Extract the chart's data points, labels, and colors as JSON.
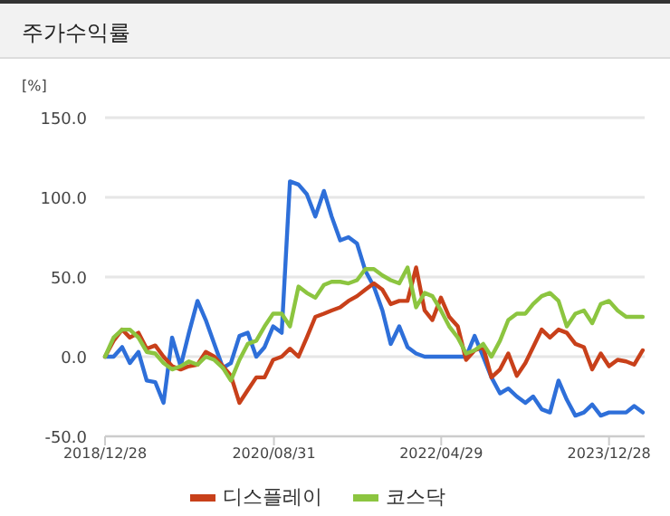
{
  "chart_data": {
    "type": "line",
    "title": "주가수익률",
    "ylabel": "[%]",
    "x": [
      "2018-12-28",
      "2019-01-28",
      "2019-02-28",
      "2019-03-28",
      "2019-04-28",
      "2019-05-28",
      "2019-06-28",
      "2019-07-28",
      "2019-08-28",
      "2019-09-28",
      "2019-10-28",
      "2019-11-28",
      "2019-12-28",
      "2020-01-28",
      "2020-02-28",
      "2020-03-28",
      "2020-04-28",
      "2020-05-28",
      "2020-06-28",
      "2020-07-28",
      "2020-08-28",
      "2020-09-28",
      "2020-10-28",
      "2020-11-28",
      "2020-12-28",
      "2021-01-28",
      "2021-02-28",
      "2021-03-28",
      "2021-04-28",
      "2021-05-28",
      "2021-06-28",
      "2021-07-28",
      "2021-08-28",
      "2021-09-28",
      "2021-10-28",
      "2021-11-28",
      "2021-12-28",
      "2022-01-28",
      "2022-02-28",
      "2022-03-28",
      "2022-04-28",
      "2022-05-28",
      "2022-06-28",
      "2022-07-28",
      "2022-08-28",
      "2022-09-28",
      "2022-10-28",
      "2022-11-28",
      "2022-12-28",
      "2023-01-28",
      "2023-02-28",
      "2023-03-28",
      "2023-04-28",
      "2023-05-28",
      "2023-06-28",
      "2023-07-28",
      "2023-08-28",
      "2023-09-28",
      "2023-10-28",
      "2023-11-28",
      "2023-12-28",
      "2024-01-28",
      "2024-02-28",
      "2024-03-28",
      "2024-04-28"
    ],
    "series": [
      {
        "color": "#2e6fd9",
        "values": [
          0,
          0,
          6,
          -4,
          3,
          -15,
          -16,
          -29,
          12,
          -6,
          15,
          35,
          23,
          8,
          -7,
          -4,
          13,
          15,
          0,
          6,
          19,
          15,
          110,
          108,
          102,
          88,
          104,
          88,
          73,
          75,
          71,
          54,
          44,
          29,
          8,
          19,
          6,
          2,
          0,
          0,
          0,
          0,
          0,
          0,
          13,
          0,
          -13,
          -23,
          -20,
          -25,
          -29,
          -25,
          -33,
          -35,
          -15,
          -27,
          -37,
          -35,
          -30,
          -37,
          -35,
          -35,
          -35,
          -31,
          -35
        ]
      },
      {
        "name": "디스플레이",
        "color": "#c8401a",
        "values": [
          0,
          10,
          17,
          12,
          15,
          5,
          7,
          0,
          -6,
          -8,
          -6,
          -5,
          3,
          0,
          -6,
          -12,
          -29,
          -21,
          -13,
          -13,
          -2,
          0,
          5,
          0,
          12,
          25,
          27,
          29,
          31,
          35,
          38,
          42,
          46,
          42,
          33,
          35,
          35,
          56,
          29,
          23,
          37,
          25,
          19,
          -2,
          4,
          6,
          -13,
          -8,
          2,
          -12,
          -4,
          6,
          17,
          12,
          17,
          15,
          8,
          6,
          -8,
          2,
          -6,
          -2,
          -3,
          -5,
          4
        ]
      },
      {
        "name": "코스닥",
        "color": "#8cc540",
        "values": [
          0,
          12,
          17,
          17,
          12,
          3,
          2,
          -4,
          -8,
          -6,
          -3,
          -5,
          0,
          -2,
          -7,
          -15,
          -2,
          8,
          10,
          19,
          27,
          27,
          19,
          44,
          40,
          37,
          45,
          47,
          47,
          46,
          48,
          55,
          55,
          51,
          48,
          46,
          56,
          31,
          40,
          38,
          29,
          19,
          12,
          2,
          4,
          8,
          0,
          10,
          23,
          27,
          27,
          33,
          38,
          40,
          35,
          19,
          27,
          29,
          21,
          33,
          35,
          29,
          25,
          25,
          25
        ]
      }
    ],
    "xlim": [
      "2018-12-28",
      "2024-05-05"
    ],
    "xticks": [
      {
        "value": "2018-12-28",
        "label": "2018/12/28"
      },
      {
        "value": "2020-08-31",
        "label": "2020/08/31"
      },
      {
        "value": "2022-04-29",
        "label": "2022/04/29"
      },
      {
        "value": "2023-12-28",
        "label": "2023/12/28"
      }
    ],
    "ylim": [
      -50,
      150
    ],
    "yticks": [
      {
        "value": -50,
        "label": "-50.0"
      },
      {
        "value": 0,
        "label": "0.0"
      },
      {
        "value": 50,
        "label": "50.0"
      },
      {
        "value": 100,
        "label": "100.0"
      },
      {
        "value": 150,
        "label": "150.0"
      }
    ],
    "grid": "y",
    "legend": "bottom",
    "marker": "none",
    "line_style": "solid"
  }
}
